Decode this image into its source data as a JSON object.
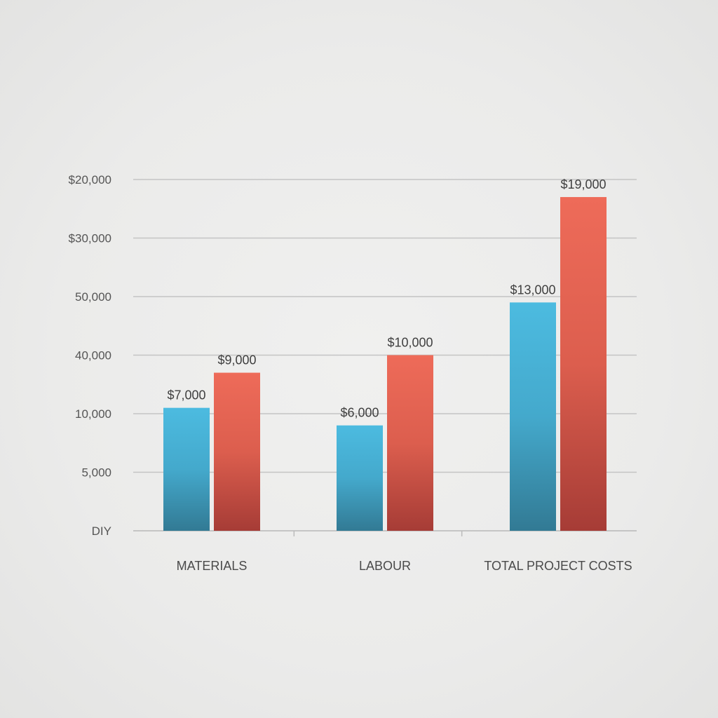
{
  "chart_data": {
    "type": "bar",
    "title": "",
    "xlabel": "",
    "ylabel": "",
    "y_tick_labels": [
      "DIY",
      "5,000",
      "10,000",
      "40,000",
      "50,000",
      "$30,000",
      "$20,000"
    ],
    "categories": [
      "MATERIALS",
      "LABOUR",
      "TOTAL PROJECT COSTS"
    ],
    "series": [
      {
        "values": [
          7000,
          6000,
          13000
        ],
        "labels": [
          "$7,000",
          "$6,000",
          "$13,000"
        ],
        "color": "#4ab8dc"
      },
      {
        "values": [
          9000,
          10000,
          19000
        ],
        "labels": [
          "$9,000",
          "$10,000",
          "$19,000"
        ],
        "color": "#ec6a58"
      }
    ],
    "ylim": [
      0,
      20000
    ],
    "grid": true,
    "legend": "none"
  }
}
